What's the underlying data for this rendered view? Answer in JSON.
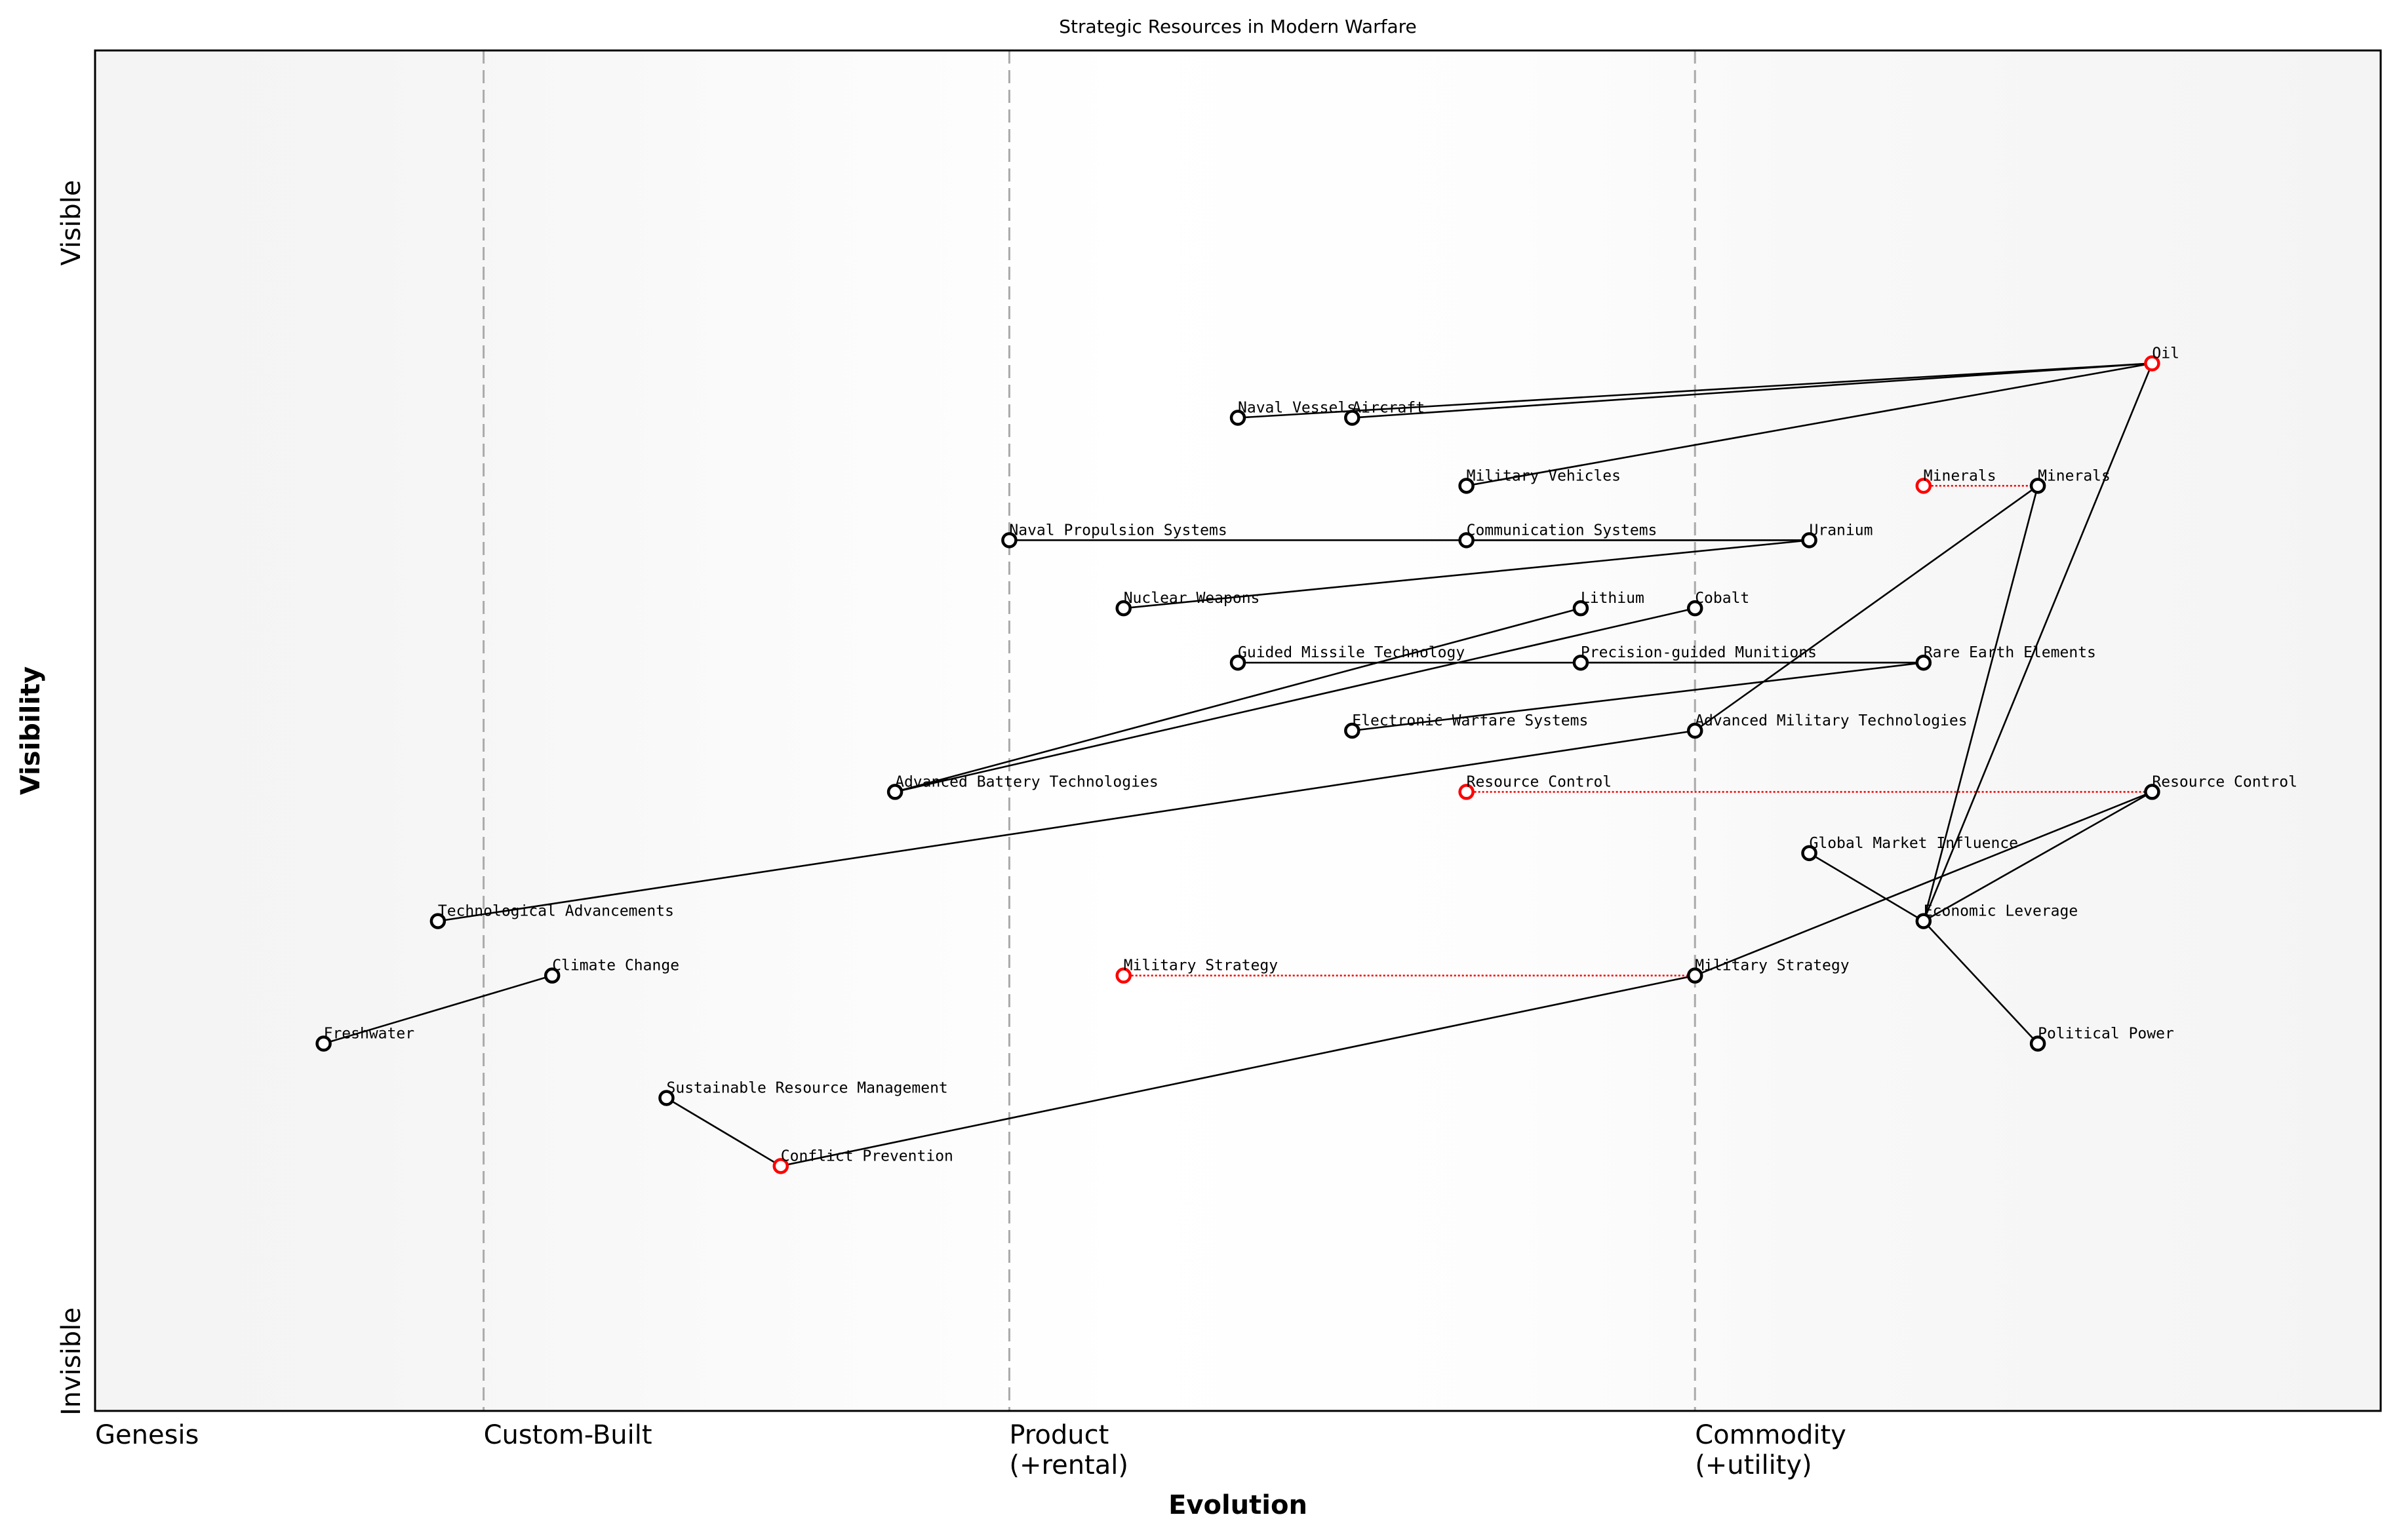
{
  "title": "Strategic Resources in Modern Warfare",
  "x_axis": {
    "label": "Evolution",
    "stages": [
      {
        "label": "Genesis",
        "at": 0.0
      },
      {
        "label": "Custom-Built",
        "at": 0.17
      },
      {
        "label": "Product\n(+rental)",
        "at": 0.4
      },
      {
        "label": "Commodity\n(+utility)",
        "at": 0.7
      }
    ]
  },
  "y_axis": {
    "label": "Visibility",
    "top_label": "Visible",
    "bottom_label": "Invisible"
  },
  "colors": {
    "node": "#000000",
    "evolved_node": "#ff0000",
    "evolve_line": "#ff0000",
    "divider": "#aaaaaa"
  },
  "nodes": [
    {
      "id": "oil",
      "label": "Oil",
      "color": "#ff0000"
    },
    {
      "id": "naval_vessels",
      "label": "Naval Vessels"
    },
    {
      "id": "aircraft",
      "label": "Aircraft"
    },
    {
      "id": "military_vehicles",
      "label": "Military Vehicles"
    },
    {
      "id": "minerals_old",
      "label": "Minerals",
      "color": "#ff0000"
    },
    {
      "id": "minerals",
      "label": "Minerals"
    },
    {
      "id": "naval_propulsion",
      "label": "Naval Propulsion Systems"
    },
    {
      "id": "communication",
      "label": "Communication Systems"
    },
    {
      "id": "uranium",
      "label": "Uranium"
    },
    {
      "id": "nuclear_weapons",
      "label": "Nuclear Weapons"
    },
    {
      "id": "lithium",
      "label": "Lithium"
    },
    {
      "id": "cobalt",
      "label": "Cobalt"
    },
    {
      "id": "guided_missile",
      "label": "Guided Missile Technology"
    },
    {
      "id": "precision_munitions",
      "label": "Precision-guided Munitions"
    },
    {
      "id": "rare_earth",
      "label": "Rare Earth Elements"
    },
    {
      "id": "electronic_warfare",
      "label": "Electronic Warfare Systems"
    },
    {
      "id": "adv_military_tech",
      "label": "Advanced Military Technologies"
    },
    {
      "id": "adv_battery",
      "label": "Advanced Battery Technologies"
    },
    {
      "id": "resource_control_old",
      "label": "Resource Control",
      "color": "#ff0000"
    },
    {
      "id": "resource_control",
      "label": "Resource Control"
    },
    {
      "id": "global_market",
      "label": "Global Market Influence"
    },
    {
      "id": "tech_advancements",
      "label": "Technological Advancements"
    },
    {
      "id": "economic_leverage",
      "label": "Economic Leverage"
    },
    {
      "id": "climate_change",
      "label": "Climate Change"
    },
    {
      "id": "military_strategy_old",
      "label": "Military Strategy",
      "color": "#ff0000"
    },
    {
      "id": "military_strategy",
      "label": "Military Strategy"
    },
    {
      "id": "freshwater",
      "label": "Freshwater"
    },
    {
      "id": "political_power",
      "label": "Political Power"
    },
    {
      "id": "sustainable_mgmt",
      "label": "Sustainable Resource Management"
    },
    {
      "id": "conflict_prevention",
      "label": "Conflict Prevention",
      "color": "#ff0000"
    }
  ],
  "links": [
    [
      "naval_vessels",
      "oil"
    ],
    [
      "aircraft",
      "oil"
    ],
    [
      "military_vehicles",
      "oil"
    ],
    [
      "naval_propulsion",
      "uranium"
    ],
    [
      "communication",
      "uranium"
    ],
    [
      "nuclear_weapons",
      "uranium"
    ],
    [
      "adv_battery",
      "lithium"
    ],
    [
      "adv_battery",
      "cobalt"
    ],
    [
      "guided_missile",
      "rare_earth"
    ],
    [
      "precision_munitions",
      "rare_earth"
    ],
    [
      "electronic_warfare",
      "rare_earth"
    ],
    [
      "adv_military_tech",
      "minerals"
    ],
    [
      "tech_advancements",
      "adv_military_tech"
    ],
    [
      "economic_leverage",
      "minerals"
    ],
    [
      "economic_leverage",
      "oil"
    ],
    [
      "economic_leverage",
      "resource_control"
    ],
    [
      "global_market",
      "economic_leverage"
    ],
    [
      "economic_leverage",
      "political_power"
    ],
    [
      "military_strategy",
      "resource_control"
    ],
    [
      "conflict_prevention",
      "military_strategy"
    ],
    [
      "sustainable_mgmt",
      "conflict_prevention"
    ],
    [
      "freshwater",
      "climate_change"
    ]
  ],
  "evolutions": [
    [
      "minerals_old",
      "minerals"
    ],
    [
      "resource_control_old",
      "resource_control"
    ],
    [
      "military_strategy_old",
      "military_strategy"
    ]
  ]
}
